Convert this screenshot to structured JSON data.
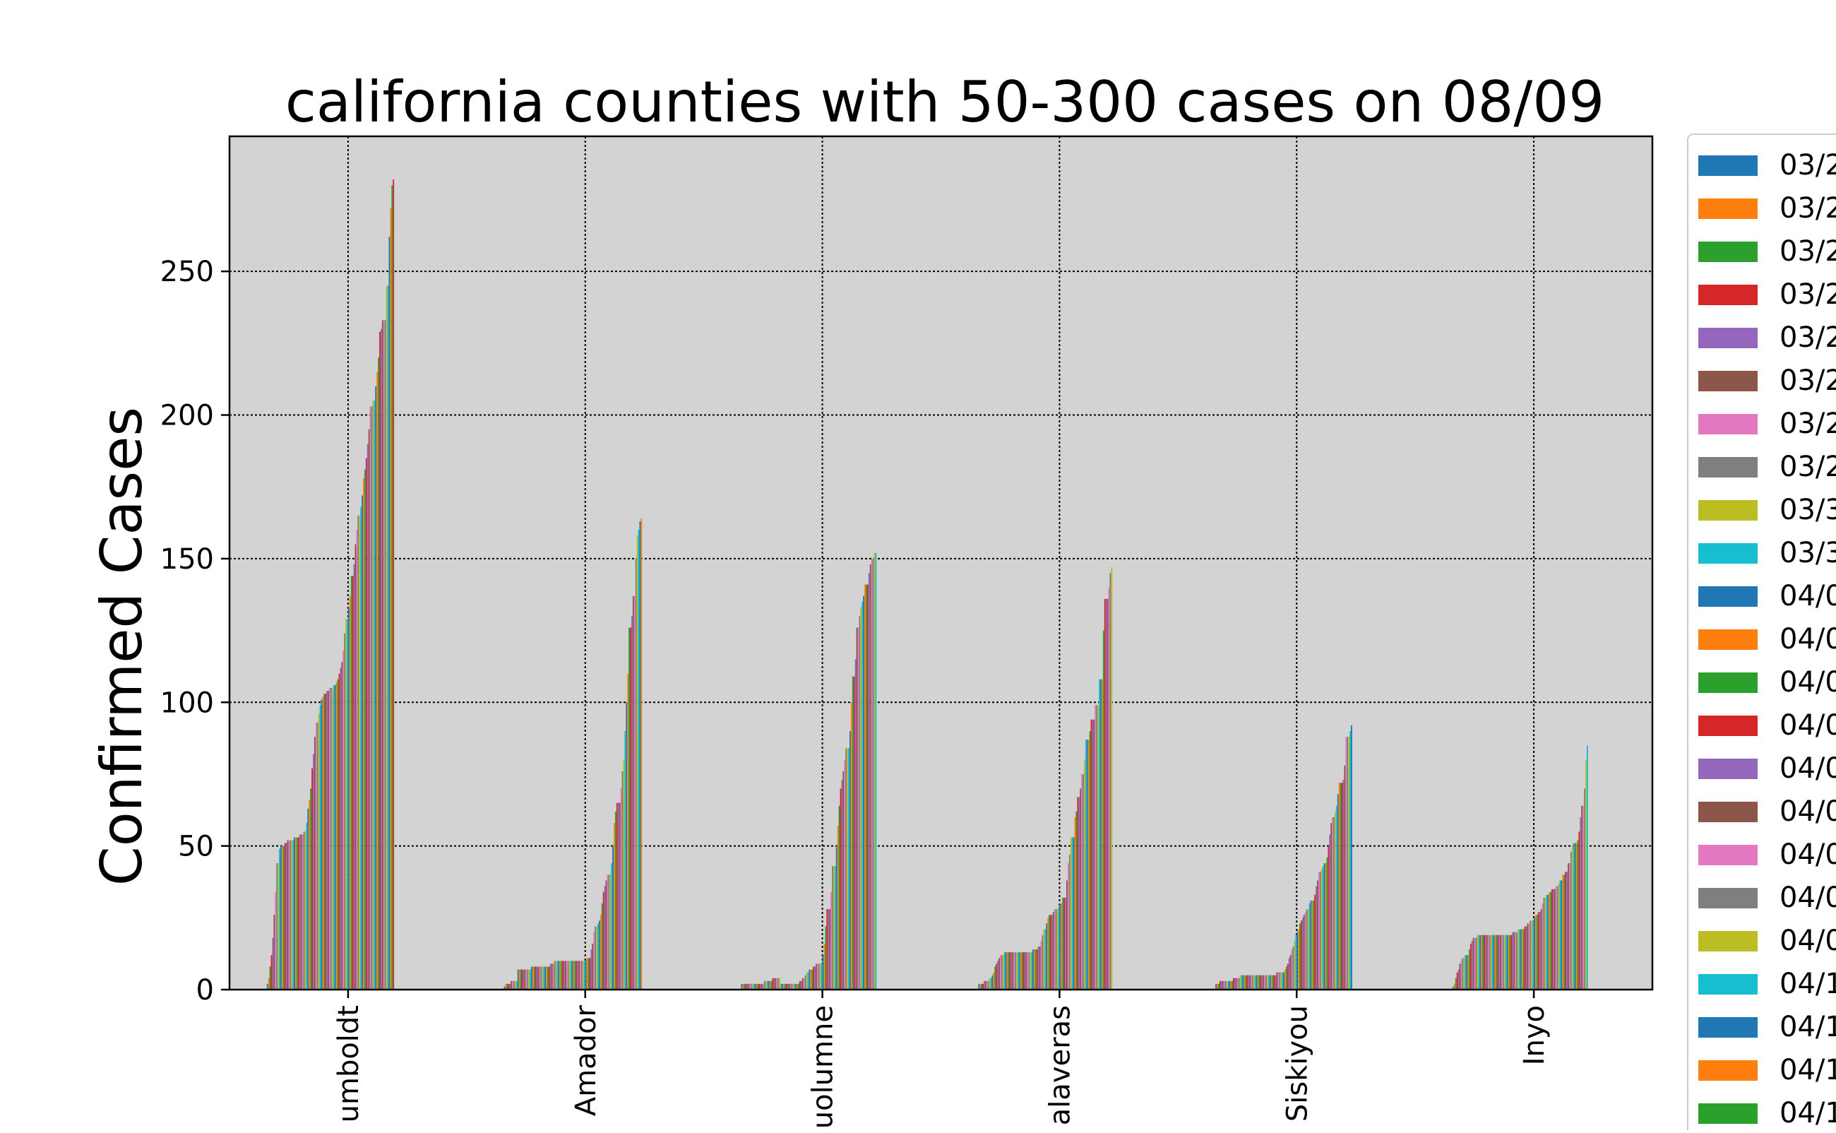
{
  "chart_data": {
    "type": "bar",
    "title": "california counties with 50-300 cases on 08/09",
    "xlabel": "",
    "ylabel": "Confirmed Cases",
    "ylim": [
      0,
      297
    ],
    "yticks": [
      0,
      50,
      100,
      150,
      200,
      250
    ],
    "grid": true,
    "legend_position": "right",
    "categories": [
      "Humboldt",
      "Amador",
      "Tuolumne",
      "Calaveras",
      "Siskiyou",
      "Inyo"
    ],
    "category_labels_visible": [
      "umboldt",
      "Amador",
      "uolumne",
      "alaveras",
      "Siskiyou",
      "Inyo"
    ],
    "legend_entries_visible": [
      "03/2",
      "03/2",
      "03/2",
      "03/2",
      "03/2",
      "03/2",
      "03/2",
      "03/2",
      "03/3",
      "03/3",
      "04/0",
      "04/0",
      "04/0",
      "04/0",
      "04/0",
      "04/0",
      "04/0",
      "04/0",
      "04/0",
      "04/1",
      "04/1",
      "04/1",
      "04/1"
    ],
    "series_colors": [
      "#1f77b4",
      "#ff7f0e",
      "#2ca02c",
      "#d62728",
      "#9467bd",
      "#8c564b",
      "#e377c2",
      "#7f7f7f",
      "#bcbd22",
      "#17becf"
    ],
    "series_count": 140,
    "values_by_county": [
      [
        0,
        0,
        0,
        0,
        0,
        0,
        0,
        0,
        0,
        0,
        2,
        4,
        8,
        12,
        18,
        26,
        34,
        44,
        44,
        49,
        50,
        50,
        50,
        51,
        51,
        52,
        52,
        52,
        52,
        52,
        53,
        53,
        53,
        53,
        54,
        54,
        54,
        55,
        55,
        58,
        63,
        66,
        70,
        77,
        82,
        88,
        93,
        93,
        96,
        99,
        101,
        102,
        103,
        103,
        104,
        104,
        105,
        105,
        105,
        106,
        106,
        107,
        108,
        110,
        112,
        114,
        118,
        124,
        129,
        129,
        133,
        137,
        144,
        144,
        148,
        155,
        160,
        165,
        165,
        168,
        172,
        178,
        181,
        185,
        190,
        195,
        203,
        203,
        205,
        205,
        210,
        215,
        220,
        229,
        230,
        233,
        233,
        233,
        245,
        245,
        262,
        272,
        280,
        282,
        0,
        0,
        0,
        0,
        0,
        0,
        0,
        0,
        0,
        0,
        0,
        0,
        0,
        0,
        0,
        0,
        0,
        0,
        0,
        0,
        0,
        0,
        0,
        0,
        0,
        0,
        0,
        0,
        0,
        0,
        0,
        0,
        0,
        0,
        0,
        0
      ],
      [
        0,
        0,
        0,
        0,
        0,
        0,
        0,
        0,
        0,
        0,
        1,
        2,
        2,
        2,
        2,
        3,
        3,
        3,
        3,
        3,
        7,
        7,
        7,
        7,
        7,
        7,
        7,
        7,
        7,
        7,
        8,
        8,
        8,
        8,
        8,
        8,
        8,
        8,
        8,
        8,
        8,
        8,
        8,
        8,
        9,
        9,
        9,
        10,
        10,
        10,
        10,
        10,
        10,
        10,
        10,
        10,
        10,
        10,
        10,
        10,
        10,
        10,
        10,
        10,
        10,
        10,
        10,
        10,
        10,
        10,
        10,
        11,
        11,
        11,
        14,
        16,
        20,
        22,
        22,
        23,
        24,
        26,
        30,
        34,
        36,
        38,
        40,
        40,
        40,
        44,
        50,
        58,
        62,
        65,
        65,
        65,
        70,
        76,
        80,
        90,
        100,
        110,
        126,
        126,
        130,
        137,
        137,
        150,
        158,
        160,
        163,
        164,
        0,
        0,
        0,
        0,
        0,
        0,
        0,
        0,
        0,
        0,
        0,
        0,
        0,
        0,
        0,
        0,
        0,
        0,
        0,
        0,
        0,
        0,
        0,
        0
      ],
      [
        0,
        0,
        0,
        0,
        0,
        0,
        0,
        0,
        0,
        0,
        2,
        2,
        2,
        2,
        2,
        2,
        2,
        2,
        2,
        2,
        2,
        2,
        2,
        2,
        2,
        2,
        2,
        3,
        3,
        3,
        3,
        3,
        3,
        4,
        4,
        4,
        4,
        4,
        4,
        2,
        2,
        2,
        2,
        2,
        2,
        2,
        2,
        2,
        2,
        2,
        2,
        2,
        2,
        3,
        3,
        4,
        4,
        5,
        6,
        6,
        7,
        7,
        7,
        8,
        8,
        9,
        9,
        9,
        9,
        9,
        12,
        16,
        22,
        28,
        28,
        28,
        34,
        43,
        43,
        43,
        50,
        57,
        64,
        70,
        73,
        76,
        80,
        84,
        84,
        84,
        90,
        100,
        109,
        109,
        115,
        126,
        126,
        130,
        133,
        135,
        137,
        141,
        141,
        141,
        145,
        148,
        150,
        150,
        152,
        152,
        0,
        0,
        0,
        0,
        0,
        0,
        0,
        0,
        0,
        0,
        0,
        0,
        0,
        0,
        0,
        0,
        0,
        0,
        0,
        0,
        0,
        0,
        0,
        0,
        0,
        0,
        0,
        0,
        0,
        0
      ],
      [
        0,
        0,
        0,
        0,
        0,
        0,
        0,
        0,
        0,
        0,
        2,
        2,
        2,
        2,
        3,
        3,
        3,
        3,
        4,
        4,
        5,
        6,
        8,
        9,
        10,
        11,
        12,
        12,
        12,
        13,
        13,
        13,
        13,
        13,
        13,
        13,
        13,
        13,
        13,
        13,
        13,
        13,
        13,
        13,
        13,
        13,
        13,
        13,
        13,
        13,
        14,
        14,
        14,
        14,
        15,
        15,
        17,
        19,
        21,
        21,
        23,
        25,
        26,
        26,
        26,
        27,
        28,
        28,
        28,
        29,
        30,
        30,
        32,
        32,
        32,
        38,
        44,
        47,
        53,
        53,
        53,
        60,
        62,
        67,
        67,
        70,
        75,
        75,
        80,
        87,
        87,
        87,
        90,
        94,
        94,
        94,
        99,
        99,
        99,
        108,
        108,
        108,
        125,
        136,
        136,
        136,
        140,
        145,
        147,
        0,
        0,
        0,
        0,
        0,
        0,
        0,
        0,
        0,
        0,
        0,
        0,
        0,
        0,
        0,
        0,
        0,
        0,
        0,
        0,
        0,
        0,
        0,
        0,
        0,
        0,
        0,
        0,
        0,
        0,
        0
      ],
      [
        0,
        0,
        0,
        0,
        0,
        0,
        0,
        0,
        0,
        0,
        2,
        2,
        2,
        3,
        3,
        3,
        3,
        3,
        3,
        3,
        3,
        3,
        3,
        4,
        4,
        4,
        4,
        4,
        5,
        5,
        5,
        5,
        5,
        5,
        5,
        5,
        5,
        5,
        5,
        5,
        5,
        5,
        5,
        5,
        5,
        5,
        5,
        5,
        5,
        5,
        5,
        5,
        5,
        5,
        5,
        6,
        6,
        6,
        6,
        6,
        6,
        7,
        8,
        9,
        11,
        12,
        14,
        15,
        17,
        19,
        20,
        21,
        23,
        24,
        25,
        26,
        27,
        28,
        28,
        30,
        31,
        31,
        31,
        33,
        36,
        38,
        41,
        41,
        42,
        43,
        44,
        44,
        46,
        50,
        54,
        58,
        60,
        60,
        62,
        64,
        68,
        72,
        72,
        72,
        73,
        78,
        88,
        88,
        88,
        90,
        92,
        0,
        0,
        0,
        0,
        0,
        0,
        0,
        0,
        0,
        0,
        0,
        0,
        0,
        0,
        0,
        0,
        0,
        0,
        0,
        0,
        0,
        0,
        0,
        0,
        0,
        0,
        0,
        0,
        0
      ],
      [
        0,
        0,
        0,
        0,
        0,
        0,
        0,
        0,
        0,
        0,
        1,
        2,
        4,
        6,
        7,
        9,
        10,
        11,
        11,
        12,
        12,
        12,
        14,
        16,
        17,
        18,
        18,
        18,
        19,
        19,
        19,
        19,
        19,
        19,
        19,
        19,
        19,
        19,
        19,
        19,
        19,
        19,
        19,
        19,
        19,
        19,
        19,
        19,
        19,
        19,
        19,
        19,
        19,
        19,
        20,
        20,
        20,
        20,
        21,
        21,
        21,
        21,
        21,
        22,
        22,
        23,
        23,
        24,
        24,
        24,
        25,
        26,
        26,
        27,
        27,
        28,
        30,
        32,
        32,
        33,
        33,
        34,
        34,
        35,
        35,
        35,
        36,
        36,
        37,
        38,
        38,
        40,
        40,
        41,
        41,
        44,
        44,
        48,
        50,
        51,
        51,
        51,
        52,
        55,
        60,
        64,
        64,
        70,
        80,
        85,
        0,
        0,
        0,
        0,
        0,
        0,
        0,
        0,
        0,
        0,
        0,
        0,
        0,
        0,
        0,
        0,
        0,
        0,
        0,
        0,
        0,
        0,
        0,
        0,
        0,
        0,
        0,
        0,
        0,
        0
      ]
    ]
  }
}
